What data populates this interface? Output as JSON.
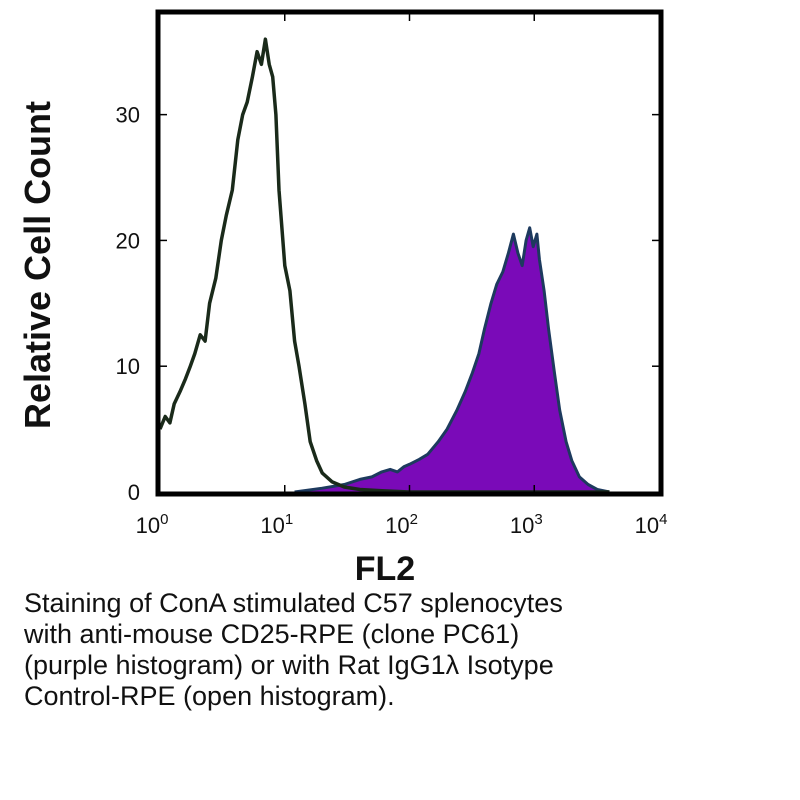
{
  "chart_data": {
    "type": "area",
    "xlabel": "FL2",
    "ylabel": "Relative Cell Count",
    "x_scale": "log",
    "xlim": [
      1,
      10000
    ],
    "ylim": [
      0,
      38
    ],
    "x_ticks": [
      {
        "value": 1,
        "base": "10",
        "exp": "0"
      },
      {
        "value": 10,
        "base": "10",
        "exp": "1"
      },
      {
        "value": 100,
        "base": "10",
        "exp": "2"
      },
      {
        "value": 1000,
        "base": "10",
        "exp": "3"
      },
      {
        "value": 10000,
        "base": "10",
        "exp": "4"
      }
    ],
    "y_ticks": [
      "0",
      "10",
      "20",
      "30"
    ],
    "y_tick_values": [
      0,
      10,
      20,
      30
    ],
    "grid": false,
    "series": [
      {
        "fill": "none",
        "stroke": "#1a2a1a",
        "x": [
          1.0,
          1.1,
          1.2,
          1.3,
          1.45,
          1.6,
          1.75,
          1.9,
          2.1,
          2.3,
          2.5,
          2.8,
          3.1,
          3.4,
          3.8,
          4.2,
          4.6,
          5.0,
          5.5,
          6.0,
          6.5,
          7.0,
          7.5,
          8.0,
          8.5,
          9.0,
          10.0,
          11.0,
          12.0,
          13.0,
          14.5,
          16.0,
          18.0,
          20.0,
          24.0,
          30.0,
          40.0,
          60.0,
          100.0,
          160.0,
          250.0,
          400.0,
          700.0,
          1000.0,
          1500.0,
          2500.0,
          4000.0
        ],
        "y": [
          5,
          6,
          5.5,
          7,
          8,
          9,
          10,
          11,
          12.5,
          12,
          15,
          17,
          20,
          22,
          24,
          28,
          30,
          31,
          33,
          35,
          34,
          36,
          34,
          33,
          30,
          24,
          18,
          16,
          12,
          10,
          7,
          4,
          2.5,
          1.5,
          0.8,
          0.4,
          0.2,
          0.1,
          0,
          0,
          0,
          0,
          0,
          0,
          0,
          0,
          0
        ]
      },
      {
        "fill": "#7a0ab8",
        "stroke": "#1d3a5e",
        "x": [
          12.0,
          20.0,
          30.0,
          40.0,
          50.0,
          60.0,
          70.0,
          80.0,
          90.0,
          100.0,
          120.0,
          140.0,
          170.0,
          200.0,
          240.0,
          280.0,
          320.0,
          360.0,
          400.0,
          450.0,
          500.0,
          560.0,
          620.0,
          680.0,
          740.0,
          800.0,
          860.0,
          920.0,
          980.0,
          1050.0,
          1100.0,
          1200.0,
          1300.0,
          1450.0,
          1600.0,
          1800.0,
          2000.0,
          2300.0,
          2700.0,
          3200.0,
          4000.0
        ],
        "y": [
          0,
          0.3,
          0.6,
          1.0,
          1.2,
          1.6,
          1.8,
          1.6,
          2.0,
          2.2,
          2.6,
          3.0,
          4.0,
          5.0,
          6.5,
          8.0,
          9.5,
          11.0,
          13.0,
          15.0,
          16.5,
          17.5,
          19.0,
          20.5,
          19.0,
          18.0,
          20.0,
          21.0,
          19.5,
          20.5,
          18.5,
          16.0,
          13.0,
          9.5,
          6.5,
          4.0,
          2.5,
          1.2,
          0.6,
          0.2,
          0
        ]
      }
    ]
  },
  "caption": {
    "lines": [
      "Staining of ConA stimulated C57 splenocytes",
      "with anti-mouse CD25-RPE (clone PC61)",
      "(purple histogram) or with Rat IgG1λ Isotype",
      "Control-RPE (open histogram)."
    ]
  }
}
